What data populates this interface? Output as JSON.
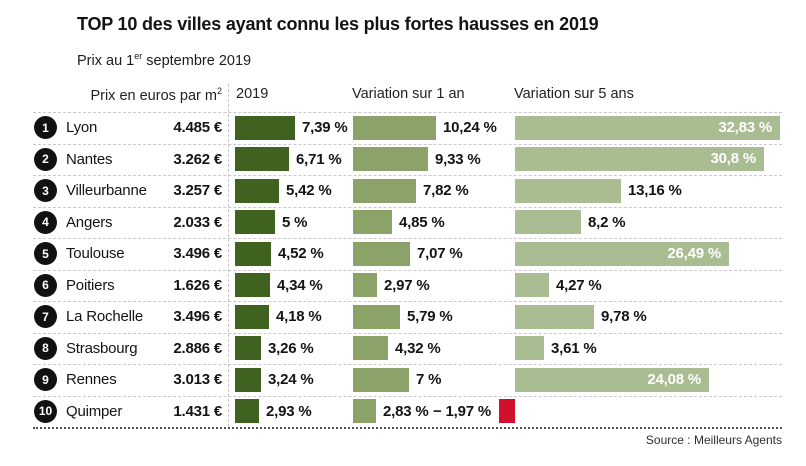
{
  "title": "TOP 10 des villes ayant connu les plus fortes hausses en 2019",
  "subtitle": {
    "prefix": "Prix au 1",
    "sup": "er",
    "suffix": " septembre 2019"
  },
  "columns": {
    "price_prefix": "Prix en euros par m",
    "price_sup": "2",
    "col_2019": "2019",
    "col_1yr": "Variation sur 1 an",
    "col_5yr": "Variation sur 5 ans"
  },
  "source": "Source : Meilleurs Agents",
  "colors": {
    "dark_green": "#3f6220",
    "medium_green": "#8ba269",
    "light_green": "#aabc92",
    "negative_red": "#d0112b"
  },
  "rows": [
    {
      "rank": "1",
      "city": "Lyon",
      "price": "4.485 €",
      "y2019": {
        "v": 7.39,
        "label": "7,39 %"
      },
      "yr1": {
        "v": 10.24,
        "label": "10,24 %"
      },
      "yr5": {
        "v": 32.83,
        "label": "32,83 %"
      }
    },
    {
      "rank": "2",
      "city": "Nantes",
      "price": "3.262 €",
      "y2019": {
        "v": 6.71,
        "label": "6,71 %"
      },
      "yr1": {
        "v": 9.33,
        "label": "9,33 %"
      },
      "yr5": {
        "v": 30.8,
        "label": "30,8 %"
      }
    },
    {
      "rank": "3",
      "city": "Villeurbanne",
      "price": "3.257 €",
      "y2019": {
        "v": 5.42,
        "label": "5,42 %"
      },
      "yr1": {
        "v": 7.82,
        "label": "7,82 %"
      },
      "yr5": {
        "v": 13.16,
        "label": "13,16 %"
      }
    },
    {
      "rank": "4",
      "city": "Angers",
      "price": "2.033 €",
      "y2019": {
        "v": 5,
        "label": "5 %"
      },
      "yr1": {
        "v": 4.85,
        "label": "4,85 %"
      },
      "yr5": {
        "v": 8.2,
        "label": "8,2 %"
      }
    },
    {
      "rank": "5",
      "city": "Toulouse",
      "price": "3.496 €",
      "y2019": {
        "v": 4.52,
        "label": "4,52 %"
      },
      "yr1": {
        "v": 7.07,
        "label": "7,07 %"
      },
      "yr5": {
        "v": 26.49,
        "label": "26,49 %"
      }
    },
    {
      "rank": "6",
      "city": "Poitiers",
      "price": "1.626 €",
      "y2019": {
        "v": 4.34,
        "label": "4,34 %"
      },
      "yr1": {
        "v": 2.97,
        "label": "2,97 %"
      },
      "yr5": {
        "v": 4.27,
        "label": "4,27 %"
      }
    },
    {
      "rank": "7",
      "city": "La Rochelle",
      "price": "3.496 €",
      "y2019": {
        "v": 4.18,
        "label": "4,18 %"
      },
      "yr1": {
        "v": 5.79,
        "label": "5,79 %"
      },
      "yr5": {
        "v": 9.78,
        "label": "9,78 %"
      }
    },
    {
      "rank": "8",
      "city": "Strasbourg",
      "price": "2.886 €",
      "y2019": {
        "v": 3.26,
        "label": "3,26 %"
      },
      "yr1": {
        "v": 4.32,
        "label": "4,32 %"
      },
      "yr5": {
        "v": 3.61,
        "label": "3,61 %"
      }
    },
    {
      "rank": "9",
      "city": "Rennes",
      "price": "3.013 €",
      "y2019": {
        "v": 3.24,
        "label": "3,24 %"
      },
      "yr1": {
        "v": 7,
        "label": "7 %"
      },
      "yr5": {
        "v": 24.08,
        "label": "24,08 %"
      }
    },
    {
      "rank": "10",
      "city": "Quimper",
      "price": "1.431 €",
      "y2019": {
        "v": 2.93,
        "label": "2,93 %"
      },
      "yr1": {
        "v": 2.83,
        "label": "2,83 %"
      },
      "yr5": {
        "v": -1.97,
        "label": "− 1,97 %"
      }
    }
  ],
  "chart_data": {
    "type": "bar",
    "title": "TOP 10 des villes ayant connu les plus fortes hausses en 2019",
    "subtitle": "Prix au 1er septembre 2019",
    "unit": "%",
    "categories": [
      "Lyon",
      "Nantes",
      "Villeurbanne",
      "Angers",
      "Toulouse",
      "Poitiers",
      "La Rochelle",
      "Strasbourg",
      "Rennes",
      "Quimper"
    ],
    "price_eur_per_m2": [
      4485,
      3262,
      3257,
      2033,
      3496,
      1626,
      3496,
      2886,
      3013,
      1431
    ],
    "series": [
      {
        "name": "2019",
        "values": [
          7.39,
          6.71,
          5.42,
          5,
          4.52,
          4.34,
          4.18,
          3.26,
          3.24,
          2.93
        ]
      },
      {
        "name": "Variation sur 1 an",
        "values": [
          10.24,
          9.33,
          7.82,
          4.85,
          7.07,
          2.97,
          5.79,
          4.32,
          7,
          2.83
        ]
      },
      {
        "name": "Variation sur 5 ans",
        "values": [
          32.83,
          30.8,
          13.16,
          8.2,
          26.49,
          4.27,
          9.78,
          3.61,
          24.08,
          -1.97
        ]
      }
    ],
    "layout": {
      "orientation": "horizontal",
      "grid": false,
      "legend": "column headers",
      "negative_color": "red"
    },
    "source": "Source : Meilleurs Agents"
  }
}
